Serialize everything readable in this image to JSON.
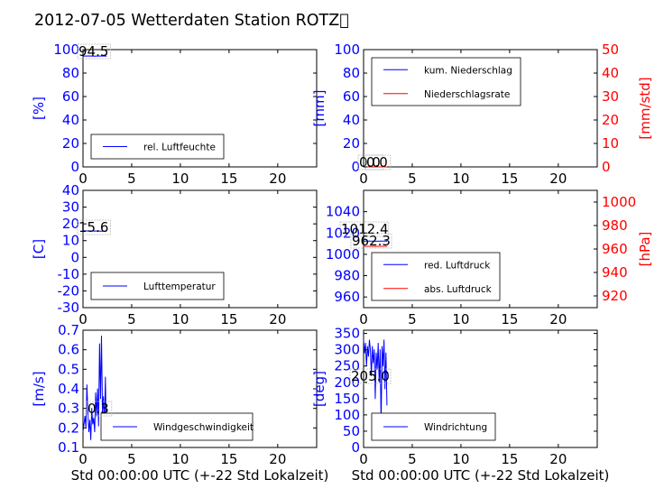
{
  "title": "2012-07-05 Wetterdaten Station ROTZ\u0000",
  "colors": {
    "left_axis": "#0000ff",
    "right_axis": "#ff0000",
    "frame": "#000000"
  },
  "chart_data": [
    {
      "id": "humidity",
      "type": "line",
      "ylabel": "[%]",
      "ylim": [
        0,
        100
      ],
      "yticks": [
        0,
        20,
        40,
        60,
        80,
        100
      ],
      "xlim": [
        0,
        24
      ],
      "xticks": [
        0,
        5,
        10,
        15,
        20
      ],
      "xlabel": "",
      "legend": [
        "rel. Luftfeuchte"
      ],
      "legend_loc": "lower-left",
      "annotations": [
        "94.5"
      ],
      "series": [
        {
          "name": "rel. Luftfeuchte",
          "color": "#0000ff",
          "x": [
            0.0,
            0.3,
            0.6,
            0.9,
            1.2,
            1.5,
            1.8,
            2.1,
            2.4
          ],
          "y": [
            94.5,
            94.5,
            94.6,
            94.5,
            94.4,
            94.5,
            94.5,
            94.6,
            94.5
          ]
        }
      ]
    },
    {
      "id": "precip",
      "type": "line",
      "ylabel": "[mm]",
      "ylabel_right": "[mm/std]",
      "ylim": [
        0,
        100
      ],
      "yticks": [
        0,
        20,
        40,
        60,
        80,
        100
      ],
      "ylim_right": [
        0,
        50
      ],
      "yticks_right": [
        0,
        10,
        20,
        30,
        40,
        50
      ],
      "xlim": [
        0,
        24
      ],
      "xticks": [
        0,
        5,
        10,
        15,
        20
      ],
      "xlabel": "",
      "legend": [
        "kum. Niederschlag",
        "Niederschlagsrate"
      ],
      "legend_loc": "upper-left",
      "annotations": [
        "0.0",
        "0.0"
      ],
      "series": [
        {
          "name": "kum. Niederschlag",
          "color": "#0000ff",
          "axis": "left",
          "x": [
            0.0,
            0.5,
            1.0,
            1.5,
            2.0,
            2.4
          ],
          "y": [
            0,
            0,
            0,
            0,
            0,
            0
          ]
        },
        {
          "name": "Niederschlagsrate",
          "color": "#ff0000",
          "axis": "right",
          "x": [
            0.0,
            0.5,
            1.0,
            1.5,
            2.0,
            2.4
          ],
          "y": [
            0,
            0,
            0,
            0,
            0,
            0
          ]
        }
      ]
    },
    {
      "id": "temperature",
      "type": "line",
      "ylabel": "[C]",
      "ylim": [
        -30,
        40
      ],
      "yticks": [
        -30,
        -20,
        -10,
        0,
        10,
        20,
        30,
        40
      ],
      "xlim": [
        0,
        24
      ],
      "xticks": [
        0,
        5,
        10,
        15,
        20
      ],
      "xlabel": "",
      "legend": [
        "Lufttemperatur"
      ],
      "legend_loc": "lower-left",
      "annotations": [
        "15.6"
      ],
      "series": [
        {
          "name": "Lufttemperatur",
          "color": "#0000ff",
          "x": [
            0.0,
            0.4,
            0.8,
            1.2,
            1.6,
            2.0,
            2.4
          ],
          "y": [
            15.9,
            15.8,
            15.8,
            15.7,
            15.7,
            15.6,
            15.6
          ]
        }
      ]
    },
    {
      "id": "pressure",
      "type": "line",
      "ylabel": "",
      "ylabel_right": "[hPa]",
      "ylim": [
        950,
        1060
      ],
      "yticks": [
        960,
        980,
        1000,
        1020,
        1040
      ],
      "ylim_right": [
        910,
        1010
      ],
      "yticks_right": [
        920,
        940,
        960,
        980,
        1000
      ],
      "xlim": [
        0,
        24
      ],
      "xticks": [
        0,
        5,
        10,
        15,
        20
      ],
      "xlabel": "",
      "legend": [
        "red. Luftdruck",
        "abs. Luftdruck"
      ],
      "legend_loc": "lower-left",
      "annotations": [
        "1012.4",
        "962.3"
      ],
      "series": [
        {
          "name": "red. Luftdruck",
          "color": "#0000ff",
          "axis": "left",
          "x": [
            0.0,
            0.6,
            1.2,
            1.8,
            2.4
          ],
          "y": [
            1012.4,
            1012.4,
            1012.3,
            1012.4,
            1012.4
          ]
        },
        {
          "name": "abs. Luftdruck",
          "color": "#ff0000",
          "axis": "right",
          "x": [
            0.0,
            0.6,
            1.2,
            1.8,
            2.4
          ],
          "y": [
            962.3,
            962.3,
            962.2,
            962.3,
            962.3
          ]
        }
      ]
    },
    {
      "id": "windspeed",
      "type": "line",
      "ylabel": "[m/s]",
      "ylim": [
        0.1,
        0.7
      ],
      "yticks": [
        0.1,
        0.2,
        0.3,
        0.4,
        0.5,
        0.6,
        0.7
      ],
      "xlim": [
        0,
        24
      ],
      "xticks": [
        0,
        5,
        10,
        15,
        20
      ],
      "xlabel": "Std 00:00:00 UTC (+-22 Std Lokalzeit)",
      "legend": [
        "Windgeschwindigkeit"
      ],
      "legend_loc": "lower-right",
      "annotations": [
        "0.3"
      ],
      "series": [
        {
          "name": "Windgeschwindigkeit",
          "color": "#0000ff",
          "x": [
            0.0,
            0.1,
            0.2,
            0.3,
            0.4,
            0.5,
            0.6,
            0.7,
            0.8,
            0.9,
            1.0,
            1.1,
            1.2,
            1.3,
            1.4,
            1.5,
            1.6,
            1.7,
            1.8,
            1.9,
            2.0,
            2.1,
            2.2,
            2.3,
            2.4
          ],
          "y": [
            0.18,
            0.22,
            0.26,
            0.2,
            0.42,
            0.28,
            0.18,
            0.24,
            0.14,
            0.3,
            0.22,
            0.25,
            0.18,
            0.38,
            0.26,
            0.4,
            0.21,
            0.63,
            0.35,
            0.67,
            0.28,
            0.36,
            0.2,
            0.46,
            0.15
          ]
        }
      ]
    },
    {
      "id": "winddir",
      "type": "line",
      "ylabel": "[deg]",
      "ylim": [
        0,
        360
      ],
      "yticks": [
        0,
        50,
        100,
        150,
        200,
        250,
        300,
        350
      ],
      "xlim": [
        0,
        24
      ],
      "xticks": [
        0,
        5,
        10,
        15,
        20
      ],
      "xlabel": "Std 00:00:00 UTC (+-22 Std Lokalzeit)",
      "legend": [
        "Windrichtung"
      ],
      "legend_loc": "lower-left",
      "annotations": [
        "205.0"
      ],
      "series": [
        {
          "name": "Windrichtung",
          "color": "#0000ff",
          "x": [
            0.0,
            0.1,
            0.2,
            0.3,
            0.4,
            0.5,
            0.6,
            0.7,
            0.8,
            0.9,
            1.0,
            1.1,
            1.2,
            1.3,
            1.4,
            1.5,
            1.6,
            1.7,
            1.8,
            1.9,
            2.0,
            2.1,
            2.2,
            2.3,
            2.4
          ],
          "y": [
            330,
            290,
            320,
            250,
            310,
            280,
            330,
            300,
            220,
            310,
            260,
            300,
            150,
            290,
            240,
            320,
            200,
            300,
            70,
            310,
            250,
            330,
            180,
            290,
            130
          ]
        }
      ]
    }
  ]
}
